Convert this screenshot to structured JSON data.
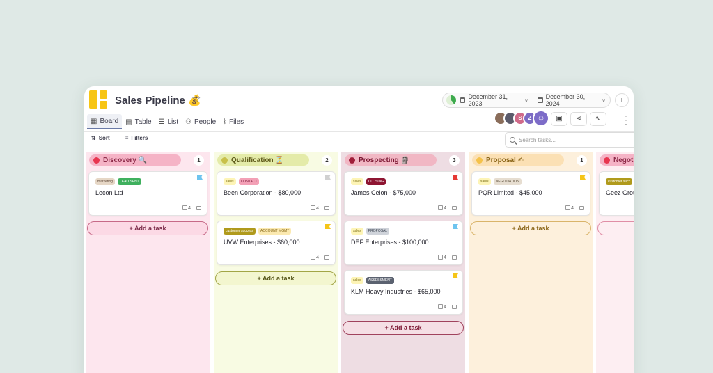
{
  "header": {
    "title": "Sales Pipeline 💰",
    "star_icon": "☆",
    "date_start": "December 31, 2023",
    "date_end": "December 30, 2024",
    "info_icon": "i"
  },
  "tabs": [
    {
      "label": "Board",
      "icon": "▦"
    },
    {
      "label": "Table",
      "icon": "▤"
    },
    {
      "label": "List",
      "icon": "☰"
    },
    {
      "label": "People",
      "icon": "⚇"
    },
    {
      "label": "Files",
      "icon": "⌇"
    }
  ],
  "avatars": [
    "",
    "",
    "S",
    "Z",
    "☺"
  ],
  "toolbar": {
    "sort_label": "Sort",
    "filters_label": "Filters",
    "search_placeholder": "Search tasks..."
  },
  "add_task_label": "+ Add a task",
  "columns": [
    {
      "name": "Discovery 🔍",
      "count": "1",
      "cards": [
        {
          "tags": [
            "marketing",
            "LEAD SENT"
          ],
          "title": "Lecon Ltd",
          "checks": "4"
        }
      ]
    },
    {
      "name": "Qualification ⏳",
      "count": "2",
      "cards": [
        {
          "tags": [
            "sales",
            "CONTACT"
          ],
          "title": "Been Corporation - $80,000",
          "checks": "4"
        },
        {
          "tags": [
            "customer success",
            "ACCOUNT MGMT"
          ],
          "title": "UVW Enterprises - $60,000",
          "checks": "4"
        }
      ]
    },
    {
      "name": "Prospecting 🗿",
      "count": "3",
      "cards": [
        {
          "tags": [
            "sales",
            "CLOSING"
          ],
          "title": "James Celon - $75,000",
          "checks": "4"
        },
        {
          "tags": [
            "sales",
            "PROPOSAL"
          ],
          "title": "DEF Enterprises - $100,000",
          "checks": "4"
        },
        {
          "tags": [
            "sales",
            "ASSESSMENT"
          ],
          "title": "KLM Heavy Industries - $65,000",
          "checks": "4"
        }
      ]
    },
    {
      "name": "Proposal ✍",
      "count": "1",
      "cards": [
        {
          "tags": [
            "sales",
            "NEGOTIATION"
          ],
          "title": "PQR Limited - $45,000",
          "checks": "4"
        }
      ]
    },
    {
      "name": "Negot",
      "count": "",
      "cards": [
        {
          "tags": [
            "customer succ"
          ],
          "title": "Geez Grou",
          "checks": ""
        }
      ]
    }
  ],
  "colors": {
    "discovery": "#e8354f",
    "qualification": "#c8c04a",
    "prospecting": "#a01e3a",
    "proposal": "#f5c24a",
    "negotiation": "#e8354f",
    "flag_blue": "#6ec4ef",
    "flag_grey": "#d0d0d0",
    "flag_red": "#e53935",
    "flag_yellow": "#f5c518"
  }
}
